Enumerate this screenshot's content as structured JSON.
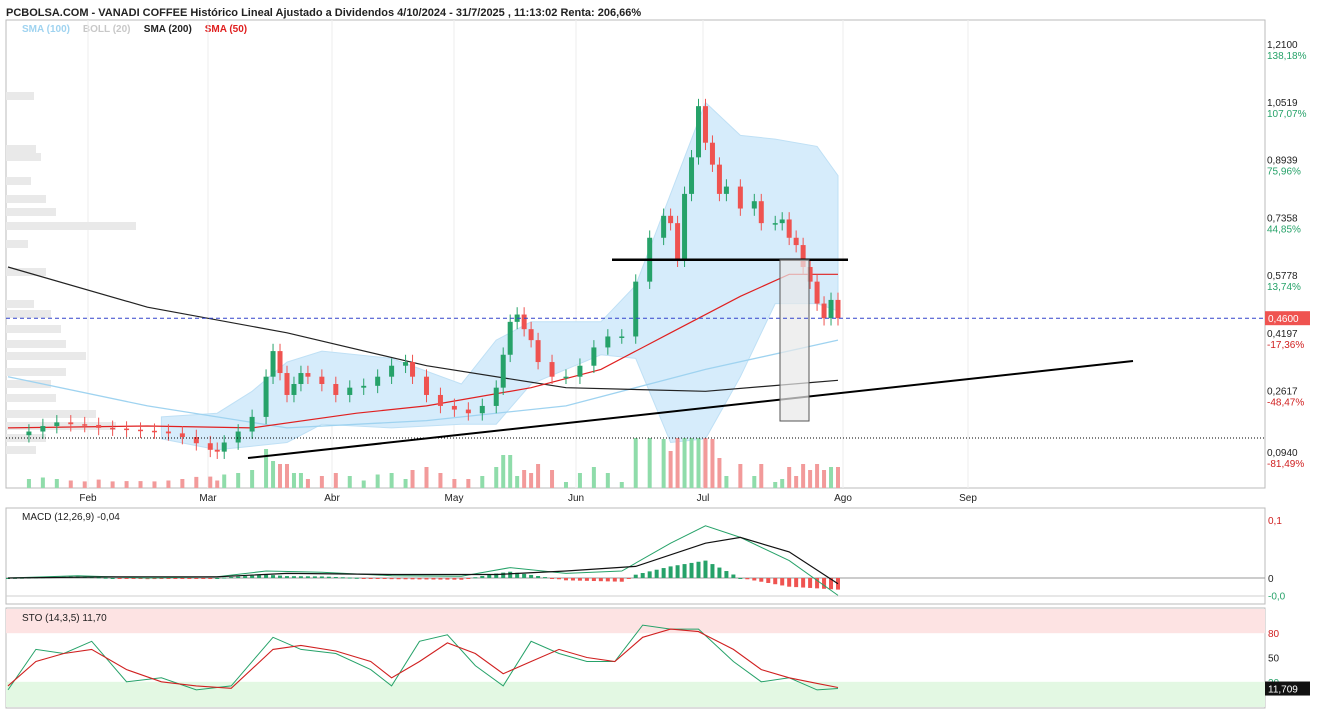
{
  "header": {
    "title": "PCBOLSA.COM - VANADI COFFEE Histórico Lineal Ajustado a Dividendos 4/10/2024 - 31/7/2025 , 11:13:02 Renta: 206,66%",
    "legend": [
      {
        "label": "SMA (100)",
        "color": "#9fd3f0"
      },
      {
        "label": "BOLL (20)",
        "color": "#c8c8c8"
      },
      {
        "label": "SMA (200)",
        "color": "#222222"
      },
      {
        "label": "SMA (50)",
        "color": "#e02020"
      }
    ]
  },
  "colors": {
    "up": "#26a269",
    "down": "#ef5350",
    "vol_up": "#8fdcaa",
    "vol_down": "#f29a9a",
    "boll_fill": "#d6ecfb"
  },
  "chart_data": [
    {
      "type": "candlestick",
      "title": "VANADI COFFEE",
      "x_ticks": [
        "Feb",
        "Mar",
        "Abr",
        "May",
        "Jun",
        "Jul",
        "Ago",
        "Sep"
      ],
      "y_ticks": [
        {
          "price": "1,2100",
          "pct": "138,18%"
        },
        {
          "price": "1,0519",
          "pct": "107,07%"
        },
        {
          "price": "0,8939",
          "pct": "75,96%"
        },
        {
          "price": "0,7358",
          "pct": "44,85%"
        },
        {
          "price": "0,5778",
          "pct": "13,74%"
        },
        {
          "price": "0,4197",
          "pct": "-17,36%"
        },
        {
          "price": "0,2617",
          "pct": "-48,47%"
        },
        {
          "price": "0,0940",
          "pct": "-81,49%"
        }
      ],
      "ylim": [
        0.0,
        1.21
      ],
      "last_price": "0,4600",
      "support_level": 0.14,
      "resistance_level": 0.62,
      "close_trend": [
        [
          1,
          0.14
        ],
        [
          3,
          0.15
        ],
        [
          5,
          0.165
        ],
        [
          7,
          0.175
        ],
        [
          9,
          0.17
        ],
        [
          11,
          0.168
        ],
        [
          13,
          0.16
        ],
        [
          15,
          0.158
        ],
        [
          17,
          0.155
        ],
        [
          19,
          0.152
        ],
        [
          21,
          0.15
        ],
        [
          23,
          0.145
        ],
        [
          25,
          0.135
        ],
        [
          27,
          0.118
        ],
        [
          29,
          0.1
        ],
        [
          30,
          0.095
        ],
        [
          31,
          0.12
        ],
        [
          33,
          0.15
        ],
        [
          35,
          0.19
        ],
        [
          37,
          0.3
        ],
        [
          38,
          0.37
        ],
        [
          39,
          0.31
        ],
        [
          40,
          0.25
        ],
        [
          41,
          0.28
        ],
        [
          42,
          0.31
        ],
        [
          43,
          0.3
        ],
        [
          45,
          0.28
        ],
        [
          47,
          0.25
        ],
        [
          49,
          0.27
        ],
        [
          51,
          0.275
        ],
        [
          53,
          0.3
        ],
        [
          55,
          0.33
        ],
        [
          57,
          0.34
        ],
        [
          58,
          0.3
        ],
        [
          60,
          0.25
        ],
        [
          62,
          0.22
        ],
        [
          64,
          0.21
        ],
        [
          66,
          0.2
        ],
        [
          68,
          0.22
        ],
        [
          70,
          0.27
        ],
        [
          71,
          0.36
        ],
        [
          72,
          0.45
        ],
        [
          73,
          0.47
        ],
        [
          74,
          0.43
        ],
        [
          75,
          0.4
        ],
        [
          76,
          0.34
        ],
        [
          78,
          0.3
        ],
        [
          80,
          0.3
        ],
        [
          82,
          0.33
        ],
        [
          84,
          0.38
        ],
        [
          86,
          0.41
        ],
        [
          88,
          0.41
        ],
        [
          90,
          0.56
        ],
        [
          92,
          0.68
        ],
        [
          94,
          0.74
        ],
        [
          95,
          0.72
        ],
        [
          96,
          0.62
        ],
        [
          97,
          0.8
        ],
        [
          98,
          0.9
        ],
        [
          99,
          1.04
        ],
        [
          100,
          0.94
        ],
        [
          101,
          0.88
        ],
        [
          102,
          0.8
        ],
        [
          103,
          0.82
        ],
        [
          105,
          0.76
        ],
        [
          107,
          0.78
        ],
        [
          108,
          0.72
        ],
        [
          110,
          0.72
        ],
        [
          111,
          0.73
        ],
        [
          112,
          0.68
        ],
        [
          113,
          0.66
        ],
        [
          114,
          0.6
        ],
        [
          115,
          0.56
        ],
        [
          116,
          0.5
        ],
        [
          117,
          0.46
        ],
        [
          118,
          0.51
        ],
        [
          119,
          0.46
        ]
      ],
      "sma200": [
        [
          0,
          0.6
        ],
        [
          20,
          0.49
        ],
        [
          40,
          0.42
        ],
        [
          60,
          0.33
        ],
        [
          80,
          0.27
        ],
        [
          100,
          0.26
        ],
        [
          119,
          0.29
        ]
      ],
      "sma50": [
        [
          0,
          0.16
        ],
        [
          20,
          0.165
        ],
        [
          35,
          0.16
        ],
        [
          50,
          0.2
        ],
        [
          60,
          0.22
        ],
        [
          75,
          0.27
        ],
        [
          85,
          0.32
        ],
        [
          95,
          0.42
        ],
        [
          105,
          0.52
        ],
        [
          112,
          0.58
        ],
        [
          119,
          0.58
        ]
      ],
      "sma100": [
        [
          0,
          0.3
        ],
        [
          20,
          0.22
        ],
        [
          40,
          0.16
        ],
        [
          60,
          0.18
        ],
        [
          80,
          0.22
        ],
        [
          100,
          0.32
        ],
        [
          119,
          0.4
        ]
      ]
    },
    {
      "type": "line",
      "title": "MACD (12,26,9)",
      "value_label": "-0,04",
      "y_ticks": [
        "0,1",
        "0",
        "-0,0"
      ],
      "macd": [
        [
          0,
          0
        ],
        [
          10,
          0.004
        ],
        [
          20,
          0
        ],
        [
          30,
          0.002
        ],
        [
          37,
          0.012
        ],
        [
          45,
          0.01
        ],
        [
          55,
          0.004
        ],
        [
          65,
          0.003
        ],
        [
          72,
          0.018
        ],
        [
          80,
          0.008
        ],
        [
          88,
          0.012
        ],
        [
          95,
          0.06
        ],
        [
          100,
          0.09
        ],
        [
          105,
          0.07
        ],
        [
          112,
          0.03
        ],
        [
          119,
          -0.03
        ]
      ],
      "signal": [
        [
          0,
          0
        ],
        [
          15,
          0.002
        ],
        [
          30,
          0.002
        ],
        [
          40,
          0.008
        ],
        [
          55,
          0.006
        ],
        [
          70,
          0.006
        ],
        [
          80,
          0.012
        ],
        [
          90,
          0.02
        ],
        [
          100,
          0.06
        ],
        [
          105,
          0.07
        ],
        [
          112,
          0.045
        ],
        [
          119,
          -0.01
        ]
      ]
    },
    {
      "type": "line",
      "title": "STO (14,3,5)",
      "value_label": "11,70",
      "y_ticks": [
        "80",
        "50",
        "20"
      ],
      "last_value": "11,709",
      "k": [
        [
          0,
          10
        ],
        [
          4,
          60
        ],
        [
          8,
          55
        ],
        [
          12,
          70
        ],
        [
          17,
          20
        ],
        [
          22,
          25
        ],
        [
          27,
          10
        ],
        [
          32,
          15
        ],
        [
          38,
          75
        ],
        [
          42,
          60
        ],
        [
          47,
          55
        ],
        [
          52,
          35
        ],
        [
          55,
          15
        ],
        [
          59,
          70
        ],
        [
          63,
          78
        ],
        [
          67,
          40
        ],
        [
          71,
          15
        ],
        [
          75,
          70
        ],
        [
          79,
          55
        ],
        [
          83,
          45
        ],
        [
          87,
          45
        ],
        [
          91,
          90
        ],
        [
          95,
          85
        ],
        [
          99,
          85
        ],
        [
          104,
          45
        ],
        [
          108,
          20
        ],
        [
          112,
          25
        ],
        [
          116,
          10
        ],
        [
          119,
          11.7
        ]
      ],
      "d": [
        [
          0,
          15
        ],
        [
          4,
          45
        ],
        [
          8,
          55
        ],
        [
          12,
          60
        ],
        [
          17,
          35
        ],
        [
          22,
          20
        ],
        [
          27,
          15
        ],
        [
          32,
          12
        ],
        [
          38,
          60
        ],
        [
          42,
          65
        ],
        [
          47,
          58
        ],
        [
          52,
          45
        ],
        [
          55,
          25
        ],
        [
          59,
          45
        ],
        [
          63,
          68
        ],
        [
          67,
          55
        ],
        [
          71,
          30
        ],
        [
          75,
          45
        ],
        [
          79,
          60
        ],
        [
          83,
          50
        ],
        [
          87,
          45
        ],
        [
          91,
          75
        ],
        [
          95,
          85
        ],
        [
          99,
          82
        ],
        [
          104,
          60
        ],
        [
          108,
          35
        ],
        [
          112,
          25
        ],
        [
          116,
          18
        ],
        [
          119,
          13
        ]
      ]
    }
  ]
}
